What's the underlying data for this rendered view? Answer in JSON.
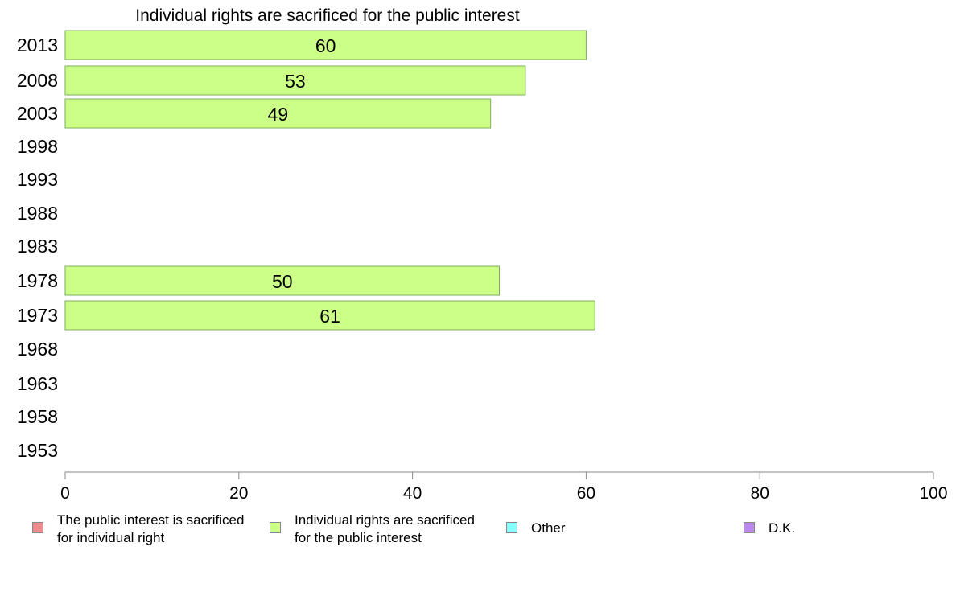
{
  "chart_data": {
    "type": "bar",
    "orientation": "horizontal",
    "title": "Individual rights are sacrificed for the public interest",
    "categories": [
      "2013",
      "2008",
      "2003",
      "1998",
      "1993",
      "1988",
      "1983",
      "1978",
      "1973",
      "1968",
      "1963",
      "1958",
      "1953"
    ],
    "series": [
      {
        "name": "Individual rights are sacrificed\nfor the public interest",
        "color": "#ccff88",
        "values": [
          60,
          53,
          49,
          null,
          null,
          null,
          null,
          50,
          61,
          null,
          null,
          null,
          null
        ],
        "labels": [
          "60",
          "53",
          "49",
          "",
          "",
          "",
          "",
          "50",
          "61",
          "",
          "",
          "",
          ""
        ]
      }
    ],
    "xlim": [
      0,
      100
    ],
    "xticks": [
      "0",
      "20",
      "40",
      "60",
      "80",
      "100"
    ],
    "xlabel": "",
    "ylabel": "",
    "grid": false,
    "legend": {
      "position": "bottom",
      "items": [
        {
          "label": "The public interest is sacrificed\nfor individual right",
          "color": "#f28b8b"
        },
        {
          "label": "Individual rights are sacrificed\nfor the public interest",
          "color": "#ccff88"
        },
        {
          "label": "Other",
          "color": "#88ffff"
        },
        {
          "label": "D.K.",
          "color": "#bb88ee"
        }
      ]
    }
  }
}
